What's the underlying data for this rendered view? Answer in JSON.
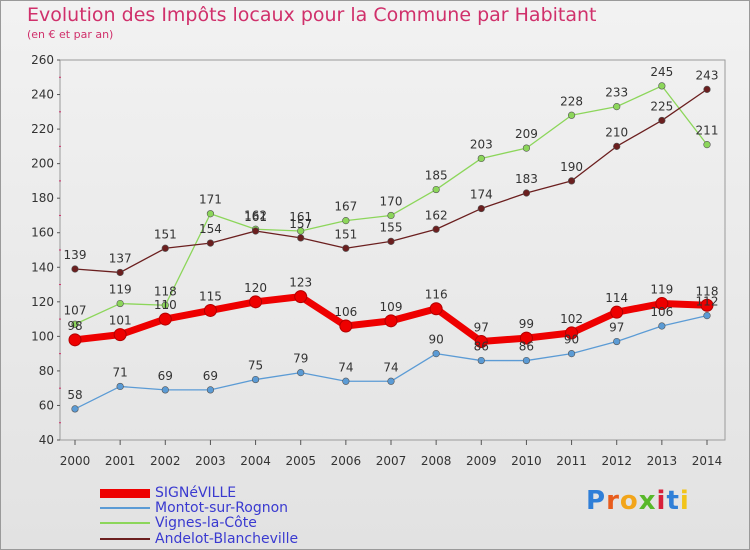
{
  "header": {
    "title": "Evolution des Impôts locaux pour la Commune par Habitant",
    "subtitle": "(en € et par an)"
  },
  "brand": {
    "text": "Proxiti",
    "letter_colors": [
      "#2f7fd8",
      "#e85c1c",
      "#f2a51a",
      "#58b82a",
      "#d8203a",
      "#2f7fd8",
      "#f2c41a"
    ]
  },
  "chart_data": {
    "type": "line",
    "title": "Evolution des Impôts locaux pour la Commune par Habitant",
    "subtitle": "(en € et par an)",
    "xlabel": "",
    "ylabel": "",
    "x": [
      2000,
      2001,
      2002,
      2003,
      2004,
      2005,
      2006,
      2007,
      2008,
      2009,
      2010,
      2011,
      2012,
      2013,
      2014
    ],
    "ylim": [
      40,
      260
    ],
    "yticks": [
      40,
      60,
      80,
      100,
      120,
      140,
      160,
      180,
      200,
      220,
      240,
      260
    ],
    "grid": false,
    "legend_position": "bottom-left",
    "series": [
      {
        "name": "SIGNéVILLE",
        "color": "#ee0000",
        "values": [
          98,
          101,
          110,
          115,
          120,
          123,
          106,
          109,
          116,
          97,
          99,
          102,
          114,
          119,
          118
        ],
        "labels": [
          "98",
          "101",
          "110",
          "115",
          "120",
          "123",
          "106",
          "109",
          "116",
          "97",
          "99",
          "102",
          "114",
          "119",
          "118"
        ]
      },
      {
        "name": "Montot-sur-Rognon",
        "color": "#5b9bd5",
        "values": [
          58,
          71,
          69,
          69,
          75,
          79,
          74,
          74,
          90,
          86,
          86,
          90,
          97,
          106,
          112
        ],
        "labels": [
          "58",
          "71",
          "69",
          "69",
          "75",
          "79",
          "74",
          "74",
          "90",
          "86",
          "86",
          "90",
          "97",
          "106",
          "112"
        ]
      },
      {
        "name": "Vignes-la-Côte",
        "color": "#8cd65a",
        "values": [
          107,
          119,
          118,
          171,
          162,
          161,
          167,
          170,
          185,
          203,
          209,
          228,
          233,
          245,
          211
        ],
        "labels": [
          "107",
          "119",
          "118",
          "171",
          "162",
          "161",
          "167",
          "170",
          "185",
          "203",
          "209",
          "228",
          "233",
          "245",
          "211"
        ]
      },
      {
        "name": "Andelot-Blancheville",
        "color": "#6b1f1f",
        "values": [
          139,
          137,
          151,
          154,
          161,
          157,
          151,
          155,
          162,
          174,
          183,
          190,
          210,
          225,
          243
        ],
        "labels": [
          "139",
          "137",
          "151",
          "154",
          "161",
          "157",
          "151",
          "155",
          "162",
          "174",
          "183",
          "190",
          "210",
          "225",
          "243"
        ]
      }
    ]
  }
}
